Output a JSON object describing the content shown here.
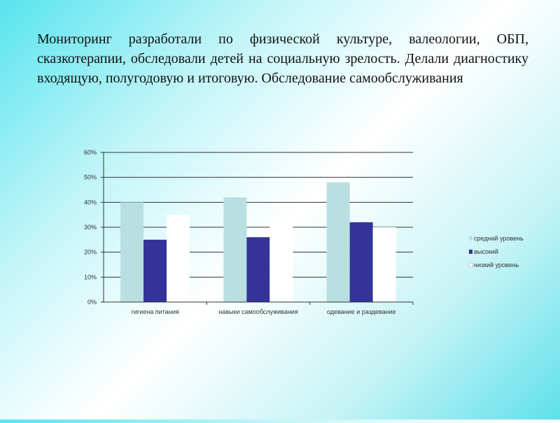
{
  "slide": {
    "text": "Мониторинг разработали  по физической культуре, валеологии, ОБП, сказкотерапии, обследовали детей на социальную зрелость. Делали диагностику входящую, полугодовую и итоговую. Обследование самообслуживания"
  },
  "chart_data": {
    "type": "bar",
    "title": "",
    "xlabel": "",
    "ylabel": "",
    "categories": [
      "гигиена питания",
      "навыки самообслуживания",
      "одевание и раздевание"
    ],
    "series": [
      {
        "name": "средний уровень",
        "values": [
          40,
          42,
          48
        ],
        "color": "#b9dfe1"
      },
      {
        "name": "высокий",
        "values": [
          25,
          26,
          32
        ],
        "color": "#333399"
      },
      {
        "name": "низкий уровень",
        "values": [
          35,
          32,
          30
        ],
        "color": "#ffffff"
      }
    ],
    "ylim": [
      0,
      60
    ],
    "yticks": [
      "0%",
      "10%",
      "20%",
      "30%",
      "40%",
      "50%",
      "60%"
    ],
    "grid": true,
    "legend": "right"
  }
}
